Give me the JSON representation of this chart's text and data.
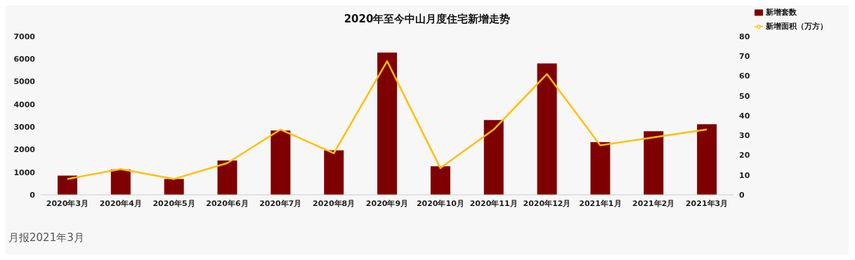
{
  "chart_data": {
    "type": "bar",
    "title": "2020年至今中山月度住宅新增走势",
    "categories": [
      "2020年3月",
      "2020年4月",
      "2020年5月",
      "2020年6月",
      "2020年7月",
      "2020年8月",
      "2020年9月",
      "2020年10月",
      "2020年11月",
      "2020年12月",
      "2021年1月",
      "2021年2月",
      "2021年3月"
    ],
    "series": [
      {
        "name": "新增套数",
        "color": "#7f0000",
        "values": [
          850,
          1120,
          700,
          1520,
          2840,
          1970,
          6290,
          1260,
          3310,
          5810,
          2330,
          2810,
          3120
        ]
      },
      {
        "name": "新增面积（万方）",
        "type": "line",
        "axis": "y2",
        "color": "#ffc000",
        "values": [
          8,
          13,
          8,
          16,
          33,
          21,
          67.5,
          13.5,
          33,
          61,
          25,
          29,
          33
        ]
      }
    ],
    "ylim": [
      0,
      7000
    ],
    "yticks": [
      0,
      1000,
      2000,
      3000,
      4000,
      5000,
      6000,
      7000
    ],
    "y2lim": [
      0,
      80
    ],
    "y2ticks": [
      0,
      10,
      20,
      30,
      40,
      50,
      60,
      70,
      80
    ],
    "grid": false,
    "legend": "top right",
    "marker": "none",
    "line_style": "solid",
    "annotations": [
      "月报2021年3月"
    ]
  }
}
